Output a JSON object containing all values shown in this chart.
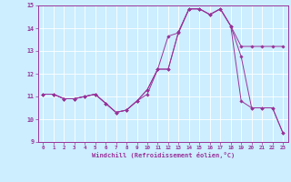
{
  "xlabel": "Windchill (Refroidissement éolien,°C)",
  "xlim": [
    -0.5,
    23.5
  ],
  "ylim": [
    9,
    15
  ],
  "xticks": [
    0,
    1,
    2,
    3,
    4,
    5,
    6,
    7,
    8,
    9,
    10,
    11,
    12,
    13,
    14,
    15,
    16,
    17,
    18,
    19,
    20,
    21,
    22,
    23
  ],
  "yticks": [
    9,
    10,
    11,
    12,
    13,
    14,
    15
  ],
  "bg_color": "#cceeff",
  "line_color": "#993399",
  "series": [
    [
      11.1,
      11.1,
      10.9,
      10.9,
      11.0,
      11.1,
      10.7,
      10.3,
      10.4,
      10.8,
      11.1,
      12.2,
      13.65,
      13.8,
      14.85,
      14.85,
      14.6,
      14.85,
      14.1,
      12.75,
      10.5,
      10.5,
      10.5,
      9.4
    ],
    [
      11.1,
      11.1,
      10.9,
      10.9,
      11.0,
      11.1,
      10.7,
      10.3,
      10.4,
      10.8,
      11.3,
      12.2,
      12.2,
      13.85,
      14.85,
      14.85,
      14.6,
      14.85,
      14.1,
      13.2,
      13.2,
      13.2,
      13.2,
      13.2
    ],
    [
      11.1,
      11.1,
      10.9,
      10.9,
      11.0,
      11.1,
      10.7,
      10.3,
      10.4,
      10.8,
      11.3,
      12.2,
      12.2,
      13.85,
      14.85,
      14.85,
      14.6,
      14.85,
      14.1,
      10.8,
      10.5,
      10.5,
      10.5,
      9.4
    ]
  ]
}
